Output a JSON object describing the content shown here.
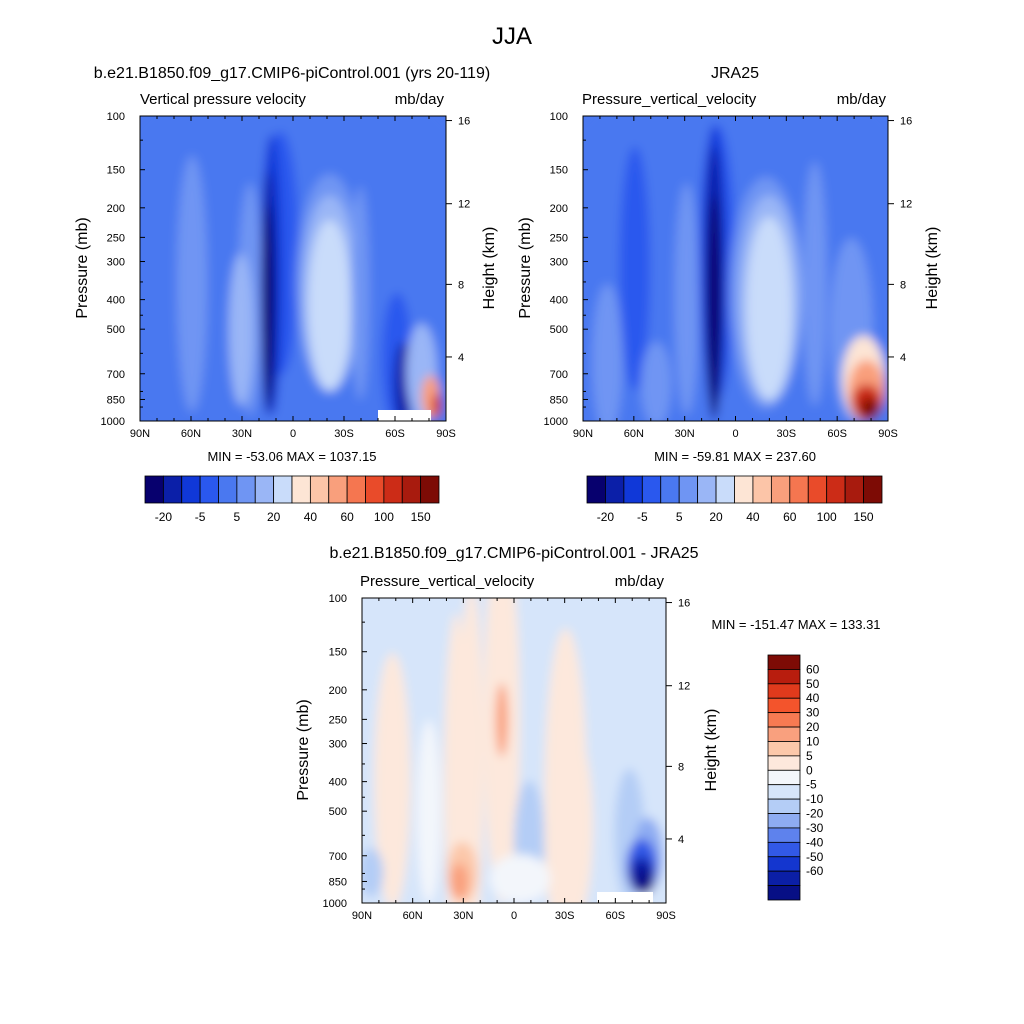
{
  "figure": {
    "title": "JJA"
  },
  "chart_data": [
    {
      "type": "heatmap",
      "id": "model",
      "title": "b.e21.B1850.f09_g17.CMIP6-piControl.001 (yrs 20-119)",
      "left_string": "Vertical pressure velocity",
      "right_string": "mb/day",
      "ylabel": "Pressure (mb)",
      "ylabel_right": "Height (km)",
      "x_ticks": [
        "90N",
        "60N",
        "30N",
        "0",
        "30S",
        "60S",
        "90S"
      ],
      "y_ticks": [
        "100",
        "150",
        "200",
        "250",
        "300",
        "400",
        "500",
        "700",
        "850",
        "1000"
      ],
      "y2_ticks": [
        "16",
        "12",
        "8",
        "4"
      ],
      "min_max_text": "MIN = -53.06  MAX = 1037.15",
      "levels_cmap": "full",
      "colorbar_labels": [
        "-20",
        "-5",
        "5",
        "20",
        "40",
        "60",
        "100",
        "150"
      ],
      "field": "model"
    },
    {
      "type": "heatmap",
      "id": "obs",
      "title": "JRA25",
      "left_string": "Pressure_vertical_velocity",
      "right_string": "mb/day",
      "ylabel": "Pressure (mb)",
      "ylabel_right": "Height (km)",
      "x_ticks": [
        "90N",
        "60N",
        "30N",
        "0",
        "30S",
        "60S",
        "90S"
      ],
      "y_ticks": [
        "100",
        "150",
        "200",
        "250",
        "300",
        "400",
        "500",
        "700",
        "850",
        "1000"
      ],
      "y2_ticks": [
        "16",
        "12",
        "8",
        "4"
      ],
      "min_max_text": "MIN = -59.81  MAX = 237.60",
      "levels_cmap": "full",
      "colorbar_labels": [
        "-20",
        "-5",
        "5",
        "20",
        "40",
        "60",
        "100",
        "150"
      ],
      "field": "obs"
    },
    {
      "type": "heatmap",
      "id": "diff",
      "title": "b.e21.B1850.f09_g17.CMIP6-piControl.001 - JRA25",
      "left_string": "Pressure_vertical_velocity",
      "right_string": "mb/day",
      "ylabel": "Pressure (mb)",
      "ylabel_right": "Height (km)",
      "x_ticks": [
        "90N",
        "60N",
        "30N",
        "0",
        "30S",
        "60S",
        "90S"
      ],
      "y_ticks": [
        "100",
        "150",
        "200",
        "250",
        "300",
        "400",
        "500",
        "700",
        "850",
        "1000"
      ],
      "y2_ticks": [
        "16",
        "12",
        "8",
        "4"
      ],
      "min_max_text": "MIN = -151.47  MAX = 133.31",
      "colorbar_labels": [
        "60",
        "50",
        "40",
        "30",
        "20",
        "10",
        "5",
        "0",
        "-5",
        "-10",
        "-20",
        "-30",
        "-40",
        "-50",
        "-60"
      ],
      "field": "diff"
    }
  ],
  "colormaps": {
    "full": [
      "#07006e",
      "#0b1fa8",
      "#1038d8",
      "#2a58ee",
      "#4a78f0",
      "#6f95f3",
      "#9ab6f6",
      "#c9dcfa",
      "#fde5d5",
      "#fcc5a8",
      "#f99f7c",
      "#f57650",
      "#e94b2a",
      "#cc2c17",
      "#a81b0e",
      "#7d0b05"
    ],
    "diff": [
      "#7d0b05",
      "#b81d0e",
      "#e03a1c",
      "#f3542c",
      "#f77a52",
      "#f9a07e",
      "#fcc8aa",
      "#fde8dc",
      "#f3f6fb",
      "#d6e5fa",
      "#b4cdf6",
      "#8eacf2",
      "#5e82ed",
      "#3259e6",
      "#1436cf",
      "#0b1fa6",
      "#070f85"
    ]
  }
}
